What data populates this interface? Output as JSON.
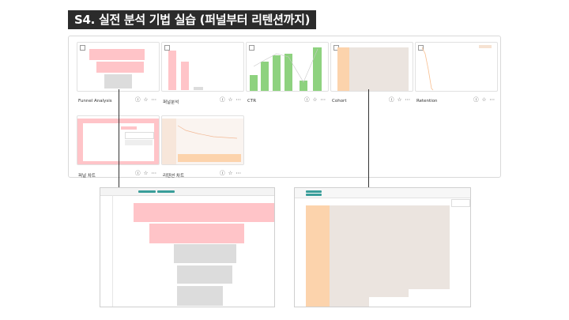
{
  "slide": {
    "title": "S4. 실전 분석 기법 실습 (퍼널부터 리텐션까지)"
  },
  "cards": [
    {
      "label": "Funnel Analysis"
    },
    {
      "label": "퍼널분석"
    },
    {
      "label": "CTR"
    },
    {
      "label": "Cohort"
    },
    {
      "label": "Retention"
    },
    {
      "label": "퍼널 차트"
    },
    {
      "label": "리텐션 차트"
    }
  ],
  "card_actions": {
    "info_icon": "ⓘ",
    "star_icon": "☆",
    "more_icon": "⋯"
  },
  "colors": {
    "funnel_pink": "#ffc4c8",
    "ctr_green": "#8ed27f",
    "cohort_orange": "#fcd3ac",
    "gray": "#dcdcdc",
    "teal_chip": "#3a9e9a"
  }
}
